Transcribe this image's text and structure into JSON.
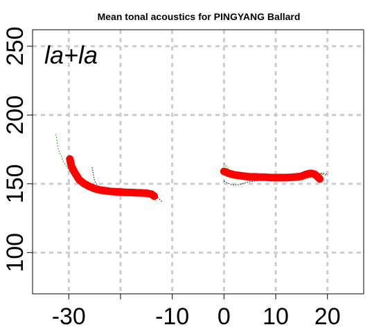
{
  "chart_data": {
    "type": "line",
    "title": "Mean tonal acoustics for PINGYANG Ballard",
    "panel_label": "la+la",
    "xlabel": "",
    "ylabel": "",
    "xlim": [
      -37,
      27
    ],
    "ylim": [
      70,
      262
    ],
    "x_ticks": [
      -30,
      -20,
      -10,
      0,
      10,
      20
    ],
    "x_tick_labels": [
      "-30",
      "",
      "-10",
      "0",
      "10",
      "20"
    ],
    "y_ticks": [
      100,
      150,
      200,
      250
    ],
    "y_tick_labels": [
      "100",
      "150",
      "200",
      "250"
    ],
    "grid": true,
    "legend": "none",
    "colors": {
      "mean": "#ff0000",
      "green": "#00bb00",
      "dotted": "#000000",
      "grid": "#cccccc"
    },
    "series": [
      {
        "kind": "mean",
        "x": [
          -29.8,
          -29.5,
          -29,
          -28.5,
          -28,
          -27,
          -26,
          -25,
          -24,
          -23,
          -22,
          -21,
          -20,
          -19,
          -18,
          -17,
          -16,
          -15,
          -14,
          -13.5
        ],
        "y": [
          168,
          163,
          159,
          156,
          153,
          150,
          148,
          146.5,
          145.5,
          145,
          144.5,
          144.2,
          144,
          143.8,
          143.7,
          143.5,
          143.4,
          143.2,
          142.5,
          141
        ]
      },
      {
        "kind": "green",
        "x": [
          -32.5,
          -32,
          -31,
          -30,
          -29,
          -28,
          -27,
          -26,
          -25,
          -24,
          -23,
          -22,
          -21,
          -20,
          -19,
          -18
        ],
        "y": [
          186,
          175,
          166,
          160,
          155,
          151,
          149,
          147.5,
          147,
          146.5,
          146,
          145.5,
          145,
          144.5,
          144,
          143.5
        ]
      },
      {
        "kind": "dotted",
        "x": [
          -25.5,
          -25.2,
          -25,
          -24.5,
          -24,
          -23,
          -22,
          -21,
          -20,
          -19,
          -18,
          -17,
          -16,
          -15,
          -14,
          -13,
          -12
        ],
        "y": [
          162,
          156,
          152,
          149,
          147,
          146,
          145.5,
          145,
          145,
          144.5,
          144.5,
          144.5,
          144,
          144,
          143.5,
          141,
          137
        ]
      },
      {
        "kind": "mean",
        "x": [
          0,
          1,
          2,
          3,
          4,
          5,
          6,
          7,
          8,
          9,
          10,
          11,
          12,
          13,
          14,
          15,
          16,
          16.5,
          17,
          17.5,
          18,
          18.5
        ],
        "y": [
          159,
          157.5,
          156.5,
          156,
          155.5,
          155,
          155,
          154.8,
          154.8,
          154.5,
          154.5,
          154.5,
          154.5,
          154.7,
          155,
          155.5,
          157,
          157.5,
          157.5,
          157,
          155.5,
          153.5
        ]
      },
      {
        "kind": "dotted",
        "x": [
          0,
          1,
          2,
          3,
          4,
          5,
          6,
          7,
          8,
          9,
          10,
          11,
          12,
          13,
          14,
          15,
          16,
          17,
          18,
          19,
          20
        ],
        "y": [
          152,
          150,
          149,
          149.5,
          150.5,
          151.5,
          152,
          152.5,
          153,
          153,
          153,
          153,
          153,
          153,
          153,
          153.5,
          154,
          155,
          156.5,
          158,
          157
        ]
      },
      {
        "kind": "dotted",
        "x": [
          0,
          1,
          2,
          3,
          4,
          5,
          6,
          7,
          8,
          9,
          10,
          11,
          12,
          13,
          14,
          15,
          16,
          17,
          18,
          19,
          20
        ],
        "y": [
          160,
          159.5,
          158.5,
          158,
          158,
          157.5,
          157.5,
          157,
          157,
          157,
          156.5,
          156,
          156,
          155.5,
          156,
          157,
          157.5,
          158,
          157.5,
          157,
          156
        ]
      },
      {
        "kind": "green",
        "x": [
          0,
          1,
          2,
          3,
          4,
          5,
          6,
          7,
          8,
          9,
          10,
          11,
          12,
          13,
          14,
          15,
          16,
          17,
          18,
          19
        ],
        "y": [
          165,
          160,
          157.5,
          156.5,
          156,
          155.5,
          155.3,
          155,
          155,
          154.8,
          154.6,
          154.5,
          154.5,
          154.5,
          154.8,
          155.2,
          156,
          156.8,
          157,
          156.5
        ]
      }
    ]
  }
}
